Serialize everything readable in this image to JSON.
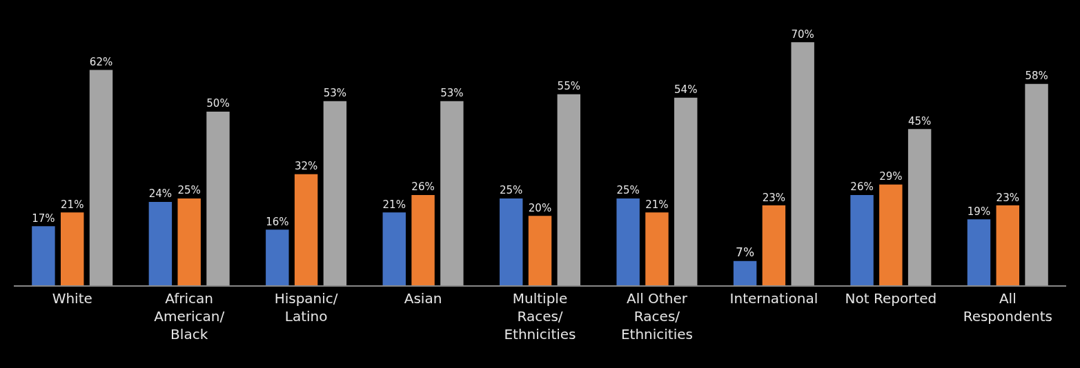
{
  "chart_data": {
    "type": "bar",
    "categories": [
      "White",
      "African American/Black",
      "Hispanic/Latino",
      "Asian",
      "Multiple Races/Ethnicities",
      "All Other Races/Ethnicities",
      "International",
      "Not Reported",
      "All Respondents"
    ],
    "series": [
      {
        "color": "#4472c4",
        "values": [
          17,
          24,
          16,
          21,
          25,
          25,
          7,
          26,
          19
        ],
        "value_labels": [
          "17%",
          "24%",
          "16%",
          "21%",
          "25%",
          "25%",
          "7%",
          "26%",
          "19%"
        ]
      },
      {
        "color": "#ed7d31",
        "values": [
          21,
          25,
          32,
          26,
          20,
          21,
          23,
          29,
          23
        ],
        "value_labels": [
          "21%",
          "25%",
          "32%",
          "26%",
          "20%",
          "21%",
          "23%",
          "29%",
          "23%"
        ]
      },
      {
        "color": "#a5a5a5",
        "values": [
          62,
          50,
          53,
          53,
          55,
          54,
          70,
          45,
          58
        ],
        "value_labels": [
          "62%",
          "50%",
          "53%",
          "53%",
          "55%",
          "54%",
          "70%",
          "45%",
          "58%"
        ]
      }
    ],
    "grid": false,
    "legend": false
  }
}
